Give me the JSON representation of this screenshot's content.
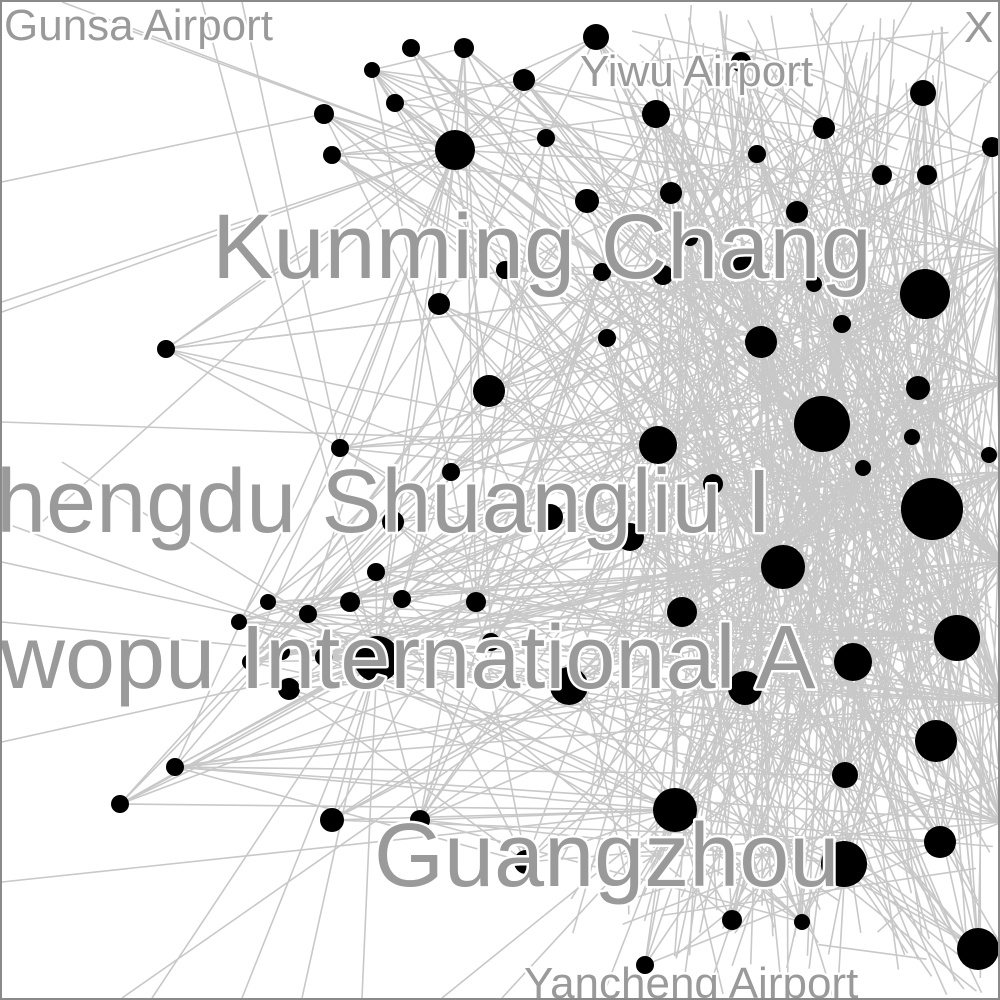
{
  "labels": [
    {
      "id": "gunsa",
      "text": "Gunsa Airport"
    },
    {
      "id": "yiwu",
      "text": "Yiwu Airport"
    },
    {
      "id": "corner",
      "text": "X"
    },
    {
      "id": "kunming",
      "text": "Kunming Chang"
    },
    {
      "id": "chengdu",
      "text": "hengdu Shuangliu I"
    },
    {
      "id": "urumqi",
      "text": "wopu International A"
    },
    {
      "id": "guangzhou",
      "text": "Guangzhou"
    },
    {
      "id": "yancheng",
      "text": "Yancheng Airport"
    }
  ],
  "colors": {
    "edge": "#c8c8c8",
    "node": "#000000",
    "label": "#9a9a9a",
    "border": "#8a8a8a"
  }
}
